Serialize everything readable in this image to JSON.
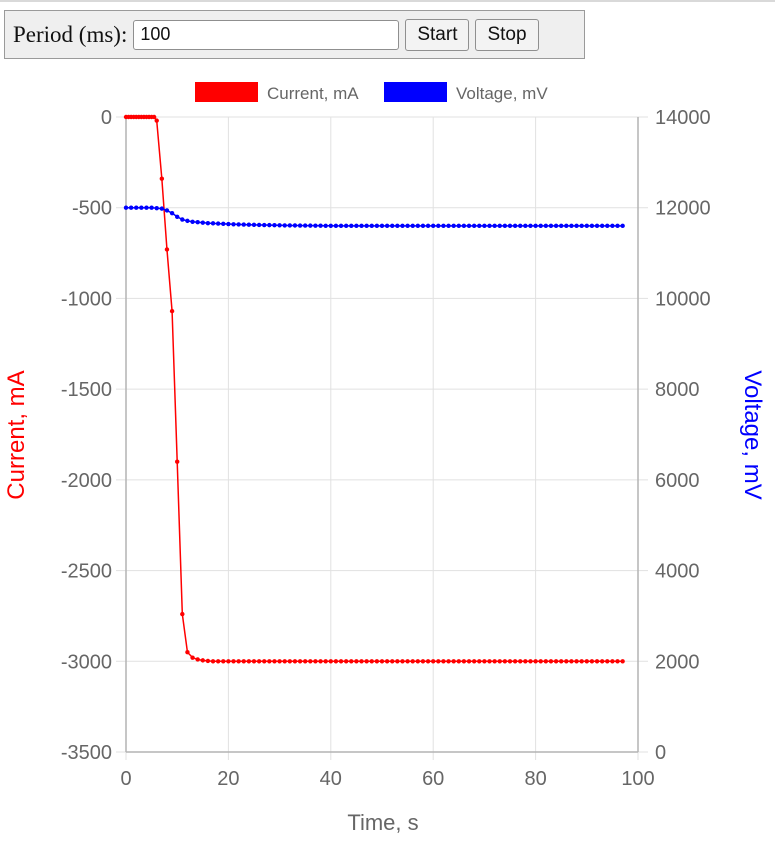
{
  "controls": {
    "period_label": "Period (ms):",
    "period_value": "100",
    "start_label": "Start",
    "stop_label": "Stop"
  },
  "chart_data": {
    "type": "line",
    "title": "",
    "xlabel": "Time, s",
    "y_left_label": "Current, mA",
    "y_right_label": "Voltage, mV",
    "xlim": [
      0,
      100
    ],
    "y_left_lim": [
      -3500,
      0
    ],
    "y_right_lim": [
      0,
      14000
    ],
    "x_ticks": [
      "0",
      "20",
      "40",
      "60",
      "80",
      "100"
    ],
    "y_left_ticks": [
      "0",
      "-500",
      "-1000",
      "-1500",
      "-2000",
      "-2500",
      "-3000",
      "-3500"
    ],
    "y_right_ticks": [
      "14000",
      "12000",
      "10000",
      "8000",
      "6000",
      "4000",
      "2000",
      "0"
    ],
    "grid": true,
    "legend_position": "top",
    "series": [
      {
        "name": "Current, mA",
        "axis": "left",
        "color": "#ff0000",
        "x": [
          0,
          0.5,
          1,
          1.5,
          2,
          2.5,
          3,
          3.5,
          4,
          4.5,
          5,
          5.5,
          6,
          7,
          8,
          9,
          10,
          11,
          12,
          13,
          14,
          15,
          16,
          17,
          18,
          19,
          20,
          21,
          22,
          23,
          24,
          25,
          26,
          27,
          28,
          29,
          30,
          31,
          32,
          33,
          34,
          35,
          36,
          37,
          38,
          39,
          40,
          41,
          42,
          43,
          44,
          45,
          46,
          47,
          48,
          49,
          50,
          51,
          52,
          53,
          54,
          55,
          56,
          57,
          58,
          59,
          60,
          61,
          62,
          63,
          64,
          65,
          66,
          67,
          68,
          69,
          70,
          71,
          72,
          73,
          74,
          75,
          76,
          77,
          78,
          79,
          80,
          81,
          82,
          83,
          84,
          85,
          86,
          87,
          88,
          89,
          90,
          91,
          92,
          93,
          94,
          95,
          96,
          97
        ],
        "y": [
          0,
          0,
          0,
          0,
          0,
          0,
          0,
          0,
          0,
          0,
          0,
          0,
          -20,
          -340,
          -730,
          -1070,
          -1900,
          -2740,
          -2950,
          -2980,
          -2990,
          -2995,
          -2998,
          -3000,
          -3000,
          -3000,
          -3000,
          -3000,
          -3000,
          -3000,
          -3000,
          -3000,
          -3000,
          -3000,
          -3000,
          -3000,
          -3000,
          -3000,
          -3000,
          -3000,
          -3000,
          -3000,
          -3000,
          -3000,
          -3000,
          -3000,
          -3000,
          -3000,
          -3000,
          -3000,
          -3000,
          -3000,
          -3000,
          -3000,
          -3000,
          -3000,
          -3000,
          -3000,
          -3000,
          -3000,
          -3000,
          -3000,
          -3000,
          -3000,
          -3000,
          -3000,
          -3000,
          -3000,
          -3000,
          -3000,
          -3000,
          -3000,
          -3000,
          -3000,
          -3000,
          -3000,
          -3000,
          -3000,
          -3000,
          -3000,
          -3000,
          -3000,
          -3000,
          -3000,
          -3000,
          -3000,
          -3000,
          -3000,
          -3000,
          -3000,
          -3000,
          -3000,
          -3000,
          -3000,
          -3000,
          -3000,
          -3000,
          -3000,
          -3000,
          -3000,
          -3000,
          -3000,
          -3000,
          -3000
        ]
      },
      {
        "name": "Voltage, mV",
        "axis": "right",
        "color": "#0000ff",
        "x": [
          0,
          1,
          2,
          3,
          4,
          5,
          6,
          7,
          8,
          9,
          10,
          11,
          12,
          13,
          14,
          15,
          16,
          17,
          18,
          19,
          20,
          21,
          22,
          23,
          24,
          25,
          26,
          27,
          28,
          29,
          30,
          31,
          32,
          33,
          34,
          35,
          36,
          37,
          38,
          39,
          40,
          41,
          42,
          43,
          44,
          45,
          46,
          47,
          48,
          49,
          50,
          51,
          52,
          53,
          54,
          55,
          56,
          57,
          58,
          59,
          60,
          61,
          62,
          63,
          64,
          65,
          66,
          67,
          68,
          69,
          70,
          71,
          72,
          73,
          74,
          75,
          76,
          77,
          78,
          79,
          80,
          81,
          82,
          83,
          84,
          85,
          86,
          87,
          88,
          89,
          90,
          91,
          92,
          93,
          94,
          95,
          96,
          97
        ],
        "y": [
          12000,
          12000,
          12000,
          12000,
          12000,
          12000,
          11990,
          11980,
          11940,
          11880,
          11800,
          11740,
          11710,
          11690,
          11680,
          11670,
          11660,
          11655,
          11650,
          11645,
          11640,
          11635,
          11632,
          11628,
          11625,
          11622,
          11620,
          11618,
          11616,
          11614,
          11612,
          11610,
          11609,
          11608,
          11607,
          11606,
          11605,
          11604,
          11603,
          11602,
          11601,
          11600,
          11600,
          11600,
          11600,
          11600,
          11600,
          11600,
          11600,
          11600,
          11600,
          11600,
          11600,
          11600,
          11600,
          11600,
          11600,
          11600,
          11600,
          11600,
          11600,
          11600,
          11600,
          11600,
          11600,
          11600,
          11600,
          11600,
          11600,
          11600,
          11600,
          11600,
          11600,
          11600,
          11600,
          11600,
          11600,
          11600,
          11600,
          11600,
          11600,
          11600,
          11600,
          11600,
          11600,
          11600,
          11600,
          11600,
          11600,
          11600,
          11600,
          11600,
          11600,
          11600,
          11600,
          11600,
          11600,
          11600
        ]
      }
    ]
  }
}
